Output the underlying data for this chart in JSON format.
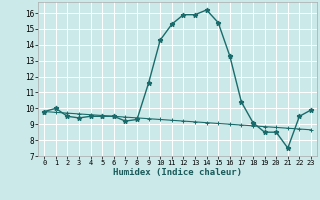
{
  "xlabel": "Humidex (Indice chaleur)",
  "background_color": "#cce9e9",
  "grid_color": "#ffffff",
  "line_color": "#1a6b6b",
  "xlim": [
    -0.5,
    23.5
  ],
  "ylim": [
    7,
    16.7
  ],
  "xticks": [
    0,
    1,
    2,
    3,
    4,
    5,
    6,
    7,
    8,
    9,
    10,
    11,
    12,
    13,
    14,
    15,
    16,
    17,
    18,
    19,
    20,
    21,
    22,
    23
  ],
  "yticks": [
    7,
    8,
    9,
    10,
    11,
    12,
    13,
    14,
    15,
    16
  ],
  "line1_x": [
    0,
    1,
    2,
    3,
    4,
    5,
    6,
    7,
    8,
    9,
    10,
    11,
    12,
    13,
    14,
    15,
    16,
    17,
    18,
    19,
    20,
    21,
    22,
    23
  ],
  "line1_y": [
    9.8,
    10.0,
    9.5,
    9.4,
    9.5,
    9.5,
    9.5,
    9.2,
    9.3,
    11.6,
    14.3,
    15.3,
    15.9,
    15.9,
    16.2,
    15.4,
    13.3,
    10.4,
    9.1,
    8.5,
    8.5,
    7.5,
    9.5,
    9.9
  ],
  "line2_x": [
    0,
    1,
    2,
    3,
    4,
    5,
    6,
    7,
    8,
    9,
    10,
    11,
    12,
    13,
    14,
    15,
    16,
    17,
    18,
    19,
    20,
    21,
    22,
    23
  ],
  "line2_y": [
    9.8,
    9.75,
    9.7,
    9.65,
    9.6,
    9.55,
    9.5,
    9.45,
    9.4,
    9.35,
    9.3,
    9.25,
    9.2,
    9.15,
    9.1,
    9.05,
    9.0,
    8.95,
    8.9,
    8.85,
    8.8,
    8.75,
    8.7,
    8.65
  ]
}
